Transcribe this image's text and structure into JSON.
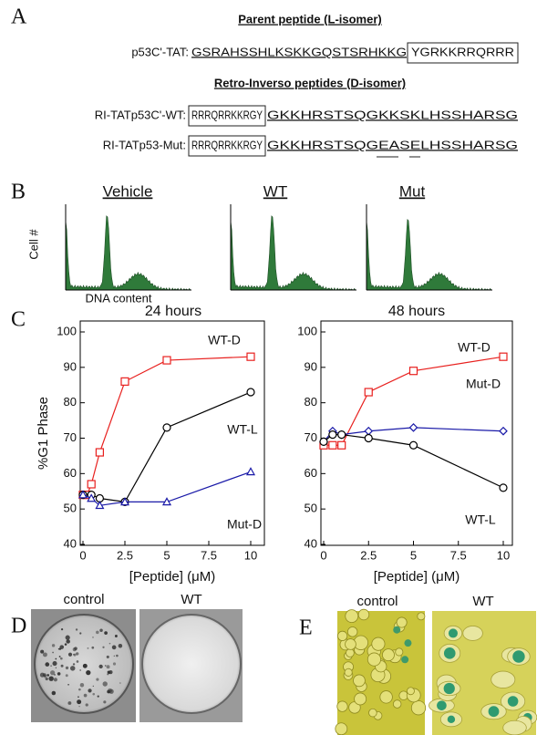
{
  "panel_a": {
    "label": "A",
    "parent_title": "Parent peptide (L-isomer)",
    "parent": {
      "name": "p53C'-TAT:",
      "seq": "GSRAHSSHLKSKKGQSTSRHKKG",
      "tat": "YGRKKRRQRRR"
    },
    "ri_title": "Retro-Inverso peptides (D-isomer)",
    "rows": [
      {
        "name": "RI-TATp53C'-WT:",
        "tat": "RRRQRRKKRGY",
        "seq": "GKKHRSTSQGKKSKLHSSHARSG"
      },
      {
        "name": "RI-TATp53-Mut:",
        "tat": "RRRQRRKKRGY",
        "seq": "GKKHRSTSQGEASELHSSHARSG"
      }
    ]
  },
  "panel_b": {
    "label": "B",
    "titles": [
      "Vehicle",
      "WT",
      "Mut"
    ],
    "y_label": "Cell #",
    "x_label": "DNA content"
  },
  "panel_c": {
    "label": "C"
  },
  "chart_data": [
    {
      "type": "line",
      "title": "24 hours",
      "x_label": "[Peptide] (μM)",
      "y_label": "%G1 Phase",
      "xlim": [
        0,
        10
      ],
      "ylim": [
        40,
        100
      ],
      "xticks": [
        0,
        2.5,
        5,
        7.5,
        10
      ],
      "yticks": [
        40,
        50,
        60,
        70,
        80,
        90,
        100
      ],
      "series": [
        {
          "name": "WT-D",
          "color": "#e8201e",
          "marker": "square",
          "x": [
            0,
            0.25,
            0.5,
            1,
            2.5,
            5,
            10
          ],
          "values": [
            54,
            54,
            57,
            66,
            86,
            92,
            93
          ]
        },
        {
          "name": "WT-L",
          "color": "#000000",
          "marker": "circle",
          "x": [
            0,
            0.5,
            1,
            2.5,
            5,
            10
          ],
          "values": [
            54,
            54,
            53,
            52,
            73,
            83
          ]
        },
        {
          "name": "Mut-D",
          "color": "#1a1aa8",
          "marker": "triangle",
          "x": [
            0,
            0.5,
            1,
            2.5,
            5,
            10
          ],
          "values": [
            54,
            53,
            51,
            52,
            52,
            60.5
          ]
        }
      ]
    },
    {
      "type": "line",
      "title": "48 hours",
      "x_label": "[Peptide] (μM)",
      "xlim": [
        0,
        10
      ],
      "ylim": [
        40,
        100
      ],
      "xticks": [
        0,
        2.5,
        5,
        7.5,
        10
      ],
      "yticks": [
        40,
        50,
        60,
        70,
        80,
        90,
        100
      ],
      "series": [
        {
          "name": "WT-D",
          "color": "#e8201e",
          "marker": "square",
          "x": [
            0,
            0.5,
            1,
            2.5,
            5,
            10
          ],
          "values": [
            68,
            68,
            68,
            83,
            89,
            93
          ]
        },
        {
          "name": "Mut-D",
          "color": "#1a1aa8",
          "marker": "diamond",
          "x": [
            0,
            0.5,
            1,
            2.5,
            5,
            10
          ],
          "values": [
            69,
            72,
            71,
            72,
            73,
            72
          ]
        },
        {
          "name": "WT-L",
          "color": "#000000",
          "marker": "circle",
          "x": [
            0,
            0.5,
            1,
            2.5,
            5,
            10
          ],
          "values": [
            69,
            71,
            71,
            70,
            68,
            56
          ]
        }
      ]
    }
  ],
  "panel_d": {
    "label": "D",
    "titles": [
      "control",
      "WT"
    ]
  },
  "panel_e": {
    "label": "E",
    "titles": [
      "control",
      "WT"
    ]
  }
}
